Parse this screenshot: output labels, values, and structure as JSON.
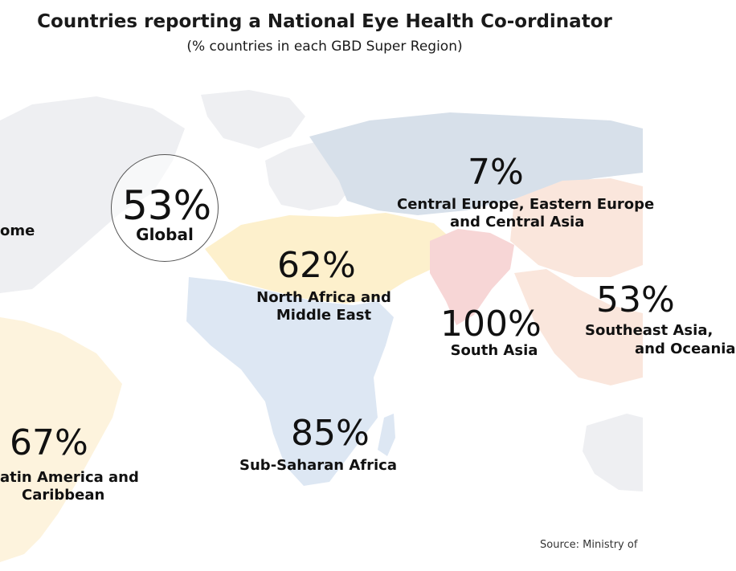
{
  "title": "Countries reporting a National Eye Health Co-ordinator",
  "subtitle": "(% countries in each GBD Super Region)",
  "source": "Source: Ministry of",
  "colors": {
    "central_europe": "#d7e0ea",
    "north_africa": "#fdf0cc",
    "south_asia": "#f7d6d6",
    "southeast_asia": "#fae6dc",
    "sub_saharan_africa": "#dde7f3",
    "latin_america": "#fdf3dd",
    "high_income": "#eeeff2"
  },
  "global": {
    "value": "53%",
    "label": "Global"
  },
  "regions": [
    {
      "key": "high_income",
      "value": "",
      "label_lines": [
        "ome"
      ]
    },
    {
      "key": "central_europe",
      "value": "7%",
      "label_lines": [
        "Central Europe, Eastern Europe",
        "and Central Asia"
      ]
    },
    {
      "key": "north_africa",
      "value": "62%",
      "label_lines": [
        "North Africa and",
        "Middle East"
      ]
    },
    {
      "key": "south_asia",
      "value": "100%",
      "label_lines": [
        "South Asia"
      ]
    },
    {
      "key": "southeast_asia",
      "value": "53%",
      "label_lines": [
        "Southeast Asia,",
        "and Oceania"
      ]
    },
    {
      "key": "sub_saharan_africa",
      "value": "85%",
      "label_lines": [
        "Sub-Saharan Africa"
      ]
    },
    {
      "key": "latin_america",
      "value": "67%",
      "label_lines": [
        "atin America and",
        "Caribbean"
      ]
    }
  ]
}
